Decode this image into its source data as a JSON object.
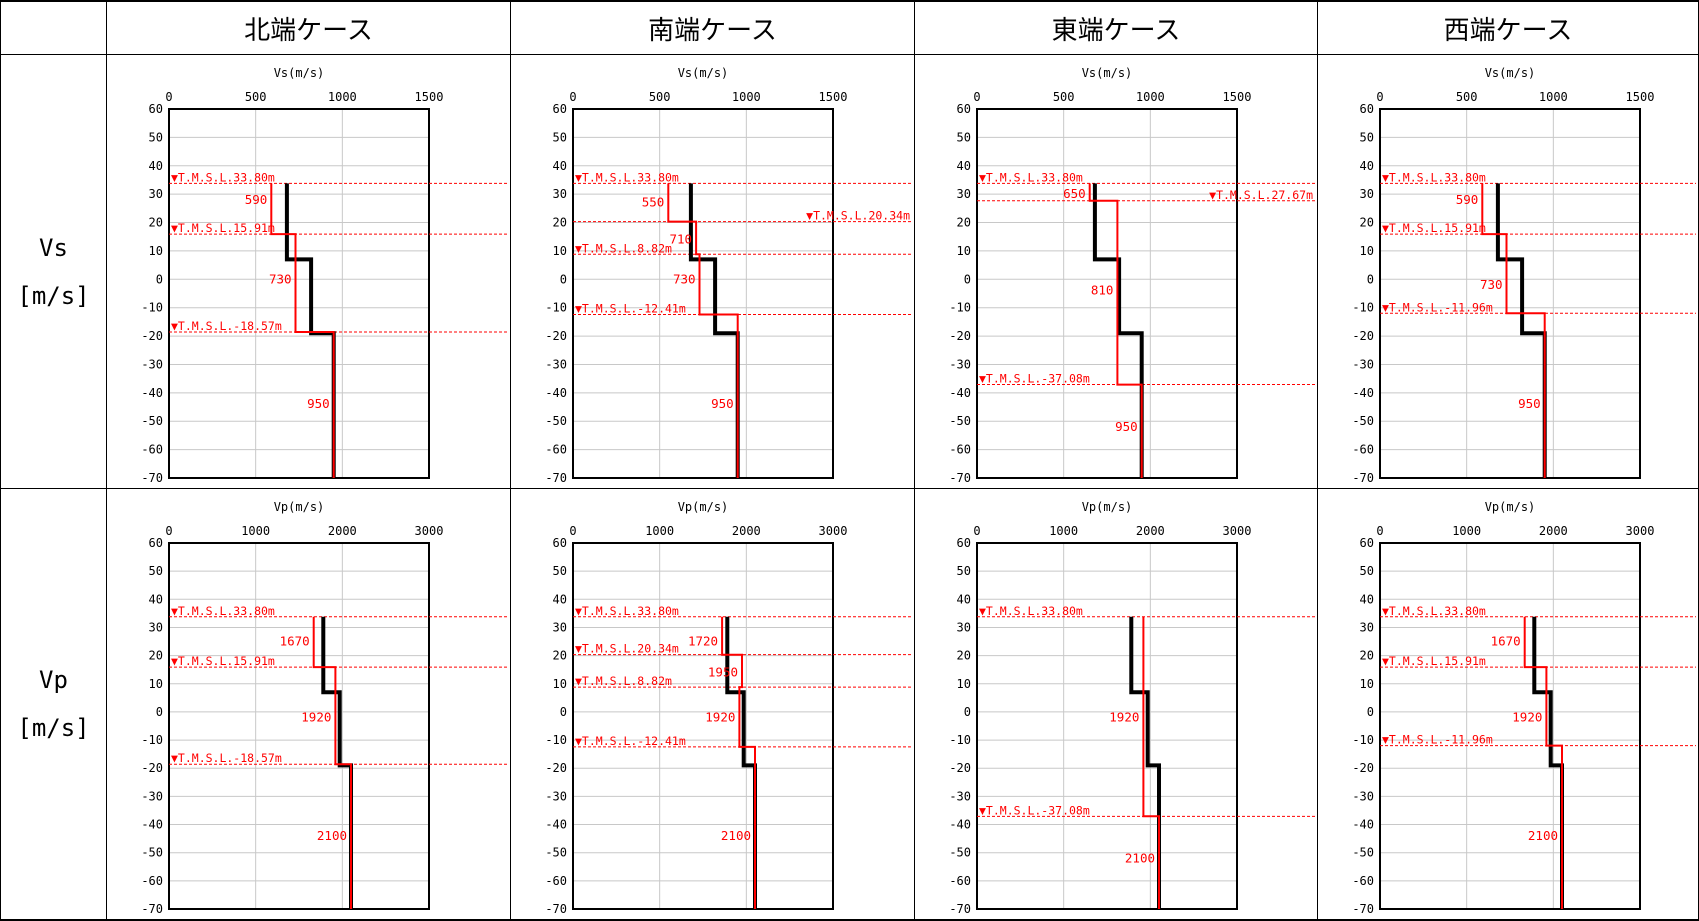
{
  "table": {
    "corner": "",
    "columns": [
      "北端ケース",
      "南端ケース",
      "東端ケース",
      "西端ケース"
    ],
    "rows": [
      {
        "label": "Vs",
        "unit": "[m/s]"
      },
      {
        "label": "Vp",
        "unit": "[m/s]"
      }
    ]
  },
  "colors": {
    "reference_line": "#000000",
    "case_line": "#ff0000",
    "annotation": "#ff0000",
    "grid": "#c8c8c8"
  },
  "chart_data": [
    {
      "id": "vs-north",
      "type": "line",
      "title": "Vs(m/s)",
      "xlim": [
        0,
        1500
      ],
      "xticks": [
        0,
        500,
        1000,
        1500
      ],
      "ylim": [
        -70,
        60
      ],
      "yticks": [
        60,
        50,
        40,
        30,
        20,
        10,
        0,
        -10,
        -20,
        -30,
        -40,
        -50,
        -60,
        -70
      ],
      "series": [
        {
          "role": "reference",
          "x": [
            680,
            680,
            820,
            820,
            950,
            950
          ],
          "y": [
            33.8,
            7,
            7,
            -19,
            -19,
            -70
          ]
        },
        {
          "role": "case",
          "x": [
            590,
            590,
            730,
            730,
            950,
            950
          ],
          "y": [
            33.8,
            15.91,
            15.91,
            -18.57,
            -18.57,
            -70
          ]
        }
      ],
      "levels": [
        {
          "y": 33.8,
          "label": "▼T.M.S.L.33.80m",
          "side": "left"
        },
        {
          "y": 15.91,
          "label": "▼T.M.S.L.15.91m",
          "side": "left"
        },
        {
          "y": -18.57,
          "label": "▼T.M.S.L.-18.57m",
          "side": "left"
        }
      ],
      "values": [
        {
          "text": "590",
          "x": 590,
          "y": 28
        },
        {
          "text": "730",
          "x": 730,
          "y": 0
        },
        {
          "text": "950",
          "x": 950,
          "y": -44
        }
      ]
    },
    {
      "id": "vs-south",
      "type": "line",
      "title": "Vs(m/s)",
      "xlim": [
        0,
        1500
      ],
      "xticks": [
        0,
        500,
        1000,
        1500
      ],
      "ylim": [
        -70,
        60
      ],
      "yticks": [
        60,
        50,
        40,
        30,
        20,
        10,
        0,
        -10,
        -20,
        -30,
        -40,
        -50,
        -60,
        -70
      ],
      "series": [
        {
          "role": "reference",
          "x": [
            680,
            680,
            820,
            820,
            950,
            950
          ],
          "y": [
            33.8,
            7,
            7,
            -19,
            -19,
            -70
          ]
        },
        {
          "role": "case",
          "x": [
            550,
            550,
            710,
            710,
            730,
            730,
            950,
            950
          ],
          "y": [
            33.8,
            20.34,
            20.34,
            8.82,
            8.82,
            -12.41,
            -12.41,
            -70
          ]
        }
      ],
      "levels": [
        {
          "y": 33.8,
          "label": "▼T.M.S.L.33.80m",
          "side": "left"
        },
        {
          "y": 20.34,
          "label": "▼T.M.S.L.20.34m",
          "side": "right"
        },
        {
          "y": 8.82,
          "label": "▼T.M.S.L.8.82m",
          "side": "left"
        },
        {
          "y": -12.41,
          "label": "▼T.M.S.L.-12.41m",
          "side": "left"
        }
      ],
      "values": [
        {
          "text": "550",
          "x": 550,
          "y": 27
        },
        {
          "text": "710",
          "x": 710,
          "y": 14
        },
        {
          "text": "730",
          "x": 730,
          "y": 0
        },
        {
          "text": "950",
          "x": 950,
          "y": -44
        }
      ]
    },
    {
      "id": "vs-east",
      "type": "line",
      "title": "Vs(m/s)",
      "xlim": [
        0,
        1500
      ],
      "xticks": [
        0,
        500,
        1000,
        1500
      ],
      "ylim": [
        -70,
        60
      ],
      "yticks": [
        60,
        50,
        40,
        30,
        20,
        10,
        0,
        -10,
        -20,
        -30,
        -40,
        -50,
        -60,
        -70
      ],
      "series": [
        {
          "role": "reference",
          "x": [
            680,
            680,
            820,
            820,
            950,
            950
          ],
          "y": [
            33.8,
            7,
            7,
            -19,
            -19,
            -70
          ]
        },
        {
          "role": "case",
          "x": [
            650,
            650,
            810,
            810,
            950,
            950
          ],
          "y": [
            33.8,
            27.67,
            27.67,
            -37.08,
            -37.08,
            -70
          ]
        }
      ],
      "levels": [
        {
          "y": 33.8,
          "label": "▼T.M.S.L.33.80m",
          "side": "left"
        },
        {
          "y": 27.67,
          "label": "▼T.M.S.L.27.67m",
          "side": "right"
        },
        {
          "y": -37.08,
          "label": "▼T.M.S.L.-37.08m",
          "side": "left"
        }
      ],
      "values": [
        {
          "text": "650",
          "x": 650,
          "y": 30
        },
        {
          "text": "810",
          "x": 810,
          "y": -4
        },
        {
          "text": "950",
          "x": 950,
          "y": -52
        }
      ]
    },
    {
      "id": "vs-west",
      "type": "line",
      "title": "Vs(m/s)",
      "xlim": [
        0,
        1500
      ],
      "xticks": [
        0,
        500,
        1000,
        1500
      ],
      "ylim": [
        -70,
        60
      ],
      "yticks": [
        60,
        50,
        40,
        30,
        20,
        10,
        0,
        -10,
        -20,
        -30,
        -40,
        -50,
        -60,
        -70
      ],
      "series": [
        {
          "role": "reference",
          "x": [
            680,
            680,
            820,
            820,
            950,
            950
          ],
          "y": [
            33.8,
            7,
            7,
            -19,
            -19,
            -70
          ]
        },
        {
          "role": "case",
          "x": [
            590,
            590,
            730,
            730,
            950,
            950
          ],
          "y": [
            33.8,
            15.91,
            15.91,
            -11.96,
            -11.96,
            -70
          ]
        }
      ],
      "levels": [
        {
          "y": 33.8,
          "label": "▼T.M.S.L.33.80m",
          "side": "left"
        },
        {
          "y": 15.91,
          "label": "▼T.M.S.L.15.91m",
          "side": "left"
        },
        {
          "y": -11.96,
          "label": "▼T.M.S.L.-11.96m",
          "side": "left"
        }
      ],
      "values": [
        {
          "text": "590",
          "x": 590,
          "y": 28
        },
        {
          "text": "730",
          "x": 730,
          "y": -2
        },
        {
          "text": "950",
          "x": 950,
          "y": -44
        }
      ]
    },
    {
      "id": "vp-north",
      "type": "line",
      "title": "Vp(m/s)",
      "xlim": [
        0,
        3000
      ],
      "xticks": [
        0,
        1000,
        2000,
        3000
      ],
      "ylim": [
        -70,
        60
      ],
      "yticks": [
        60,
        50,
        40,
        30,
        20,
        10,
        0,
        -10,
        -20,
        -30,
        -40,
        -50,
        -60,
        -70
      ],
      "series": [
        {
          "role": "reference",
          "x": [
            1780,
            1780,
            1970,
            1970,
            2100,
            2100
          ],
          "y": [
            33.8,
            7,
            7,
            -19,
            -19,
            -70
          ]
        },
        {
          "role": "case",
          "x": [
            1670,
            1670,
            1920,
            1920,
            2100,
            2100
          ],
          "y": [
            33.8,
            15.91,
            15.91,
            -18.57,
            -18.57,
            -70
          ]
        }
      ],
      "levels": [
        {
          "y": 33.8,
          "label": "▼T.M.S.L.33.80m",
          "side": "left"
        },
        {
          "y": 15.91,
          "label": "▼T.M.S.L.15.91m",
          "side": "left"
        },
        {
          "y": -18.57,
          "label": "▼T.M.S.L.-18.57m",
          "side": "left"
        }
      ],
      "values": [
        {
          "text": "1670",
          "x": 1670,
          "y": 25
        },
        {
          "text": "1920",
          "x": 1920,
          "y": -2
        },
        {
          "text": "2100",
          "x": 2100,
          "y": -44
        }
      ]
    },
    {
      "id": "vp-south",
      "type": "line",
      "title": "Vp(m/s)",
      "xlim": [
        0,
        3000
      ],
      "xticks": [
        0,
        1000,
        2000,
        3000
      ],
      "ylim": [
        -70,
        60
      ],
      "yticks": [
        60,
        50,
        40,
        30,
        20,
        10,
        0,
        -10,
        -20,
        -30,
        -40,
        -50,
        -60,
        -70
      ],
      "series": [
        {
          "role": "reference",
          "x": [
            1780,
            1780,
            1970,
            1970,
            2100,
            2100
          ],
          "y": [
            33.8,
            7,
            7,
            -19,
            -19,
            -70
          ]
        },
        {
          "role": "case",
          "x": [
            1720,
            1720,
            1950,
            1950,
            1920,
            1920,
            2100,
            2100
          ],
          "y": [
            33.8,
            20.34,
            20.34,
            8.82,
            8.82,
            -12.41,
            -12.41,
            -70
          ]
        }
      ],
      "levels": [
        {
          "y": 33.8,
          "label": "▼T.M.S.L.33.80m",
          "side": "left"
        },
        {
          "y": 20.34,
          "label": "▼T.M.S.L.20.34m",
          "side": "left"
        },
        {
          "y": 8.82,
          "label": "▼T.M.S.L.8.82m",
          "side": "left"
        },
        {
          "y": -12.41,
          "label": "▼T.M.S.L.-12.41m",
          "side": "left"
        }
      ],
      "values": [
        {
          "text": "1720",
          "x": 1720,
          "y": 25
        },
        {
          "text": "1950",
          "x": 1950,
          "y": 14
        },
        {
          "text": "1920",
          "x": 1920,
          "y": -2
        },
        {
          "text": "2100",
          "x": 2100,
          "y": -44
        }
      ]
    },
    {
      "id": "vp-east",
      "type": "line",
      "title": "Vp(m/s)",
      "xlim": [
        0,
        3000
      ],
      "xticks": [
        0,
        1000,
        2000,
        3000
      ],
      "ylim": [
        -70,
        60
      ],
      "yticks": [
        60,
        50,
        40,
        30,
        20,
        10,
        0,
        -10,
        -20,
        -30,
        -40,
        -50,
        -60,
        -70
      ],
      "series": [
        {
          "role": "reference",
          "x": [
            1780,
            1780,
            1970,
            1970,
            2100,
            2100
          ],
          "y": [
            33.8,
            7,
            7,
            -19,
            -19,
            -70
          ]
        },
        {
          "role": "case",
          "x": [
            1920,
            1920,
            2100,
            2100
          ],
          "y": [
            33.8,
            -37.08,
            -37.08,
            -70
          ]
        }
      ],
      "levels": [
        {
          "y": 33.8,
          "label": "▼T.M.S.L.33.80m",
          "side": "left"
        },
        {
          "y": -37.08,
          "label": "▼T.M.S.L.-37.08m",
          "side": "left"
        }
      ],
      "values": [
        {
          "text": "1920",
          "x": 1920,
          "y": -2
        },
        {
          "text": "2100",
          "x": 2100,
          "y": -52
        }
      ]
    },
    {
      "id": "vp-west",
      "type": "line",
      "title": "Vp(m/s)",
      "xlim": [
        0,
        3000
      ],
      "xticks": [
        0,
        1000,
        2000,
        3000
      ],
      "ylim": [
        -70,
        60
      ],
      "yticks": [
        60,
        50,
        40,
        30,
        20,
        10,
        0,
        -10,
        -20,
        -30,
        -40,
        -50,
        -60,
        -70
      ],
      "series": [
        {
          "role": "reference",
          "x": [
            1780,
            1780,
            1970,
            1970,
            2100,
            2100
          ],
          "y": [
            33.8,
            7,
            7,
            -19,
            -19,
            -70
          ]
        },
        {
          "role": "case",
          "x": [
            1670,
            1670,
            1920,
            1920,
            2100,
            2100
          ],
          "y": [
            33.8,
            15.91,
            15.91,
            -11.96,
            -11.96,
            -70
          ]
        }
      ],
      "levels": [
        {
          "y": 33.8,
          "label": "▼T.M.S.L.33.80m",
          "side": "left"
        },
        {
          "y": 15.91,
          "label": "▼T.M.S.L.15.91m",
          "side": "left"
        },
        {
          "y": -11.96,
          "label": "▼T.M.S.L.-11.96m",
          "side": "left"
        }
      ],
      "values": [
        {
          "text": "1670",
          "x": 1670,
          "y": 25
        },
        {
          "text": "1920",
          "x": 1920,
          "y": -2
        },
        {
          "text": "2100",
          "x": 2100,
          "y": -44
        }
      ]
    }
  ]
}
